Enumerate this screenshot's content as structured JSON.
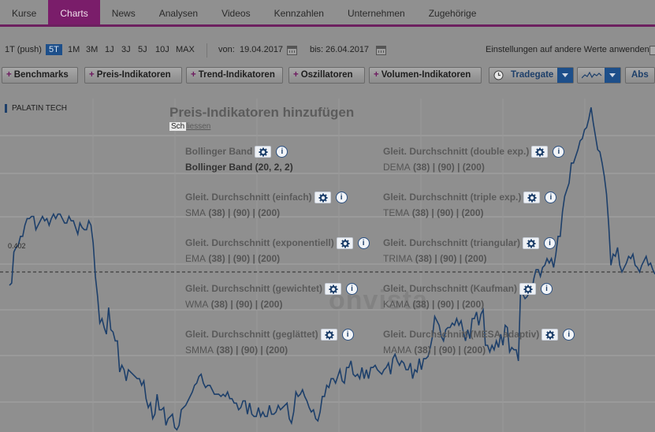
{
  "nav": {
    "tabs": [
      {
        "label": "Kurse"
      },
      {
        "label": "Charts",
        "active": true
      },
      {
        "label": "News"
      },
      {
        "label": "Analysen"
      },
      {
        "label": "Videos"
      },
      {
        "label": "Kennzahlen"
      },
      {
        "label": "Unternehmen"
      },
      {
        "label": "Zugehörige"
      }
    ]
  },
  "range": {
    "options": [
      "1T (push)",
      "5T",
      "1M",
      "3M",
      "1J",
      "3J",
      "5J",
      "10J",
      "MAX"
    ],
    "selected": "5T",
    "from_label": "von:",
    "from_value": "19.04.2017",
    "to_label": "bis:",
    "to_value": "26.04.2017",
    "apply_label": "Einstellungen auf andere Werte anwenden:"
  },
  "toolbar": {
    "benchmarks": "Benchmarks",
    "price": "Preis-Indikatoren",
    "trend": "Trend-Indikatoren",
    "osc": "Oszillatoren",
    "volume": "Volumen-Indikatoren",
    "exchange": "Tradegate",
    "scale": "Abs"
  },
  "chart": {
    "series_name": "PALATIN TECH",
    "ref_price": "0.402",
    "watermark": "onvista",
    "line_color": "#1d3f6a"
  },
  "chart_data": {
    "type": "line",
    "title": "PALATIN TECH",
    "series": [
      {
        "name": "PALATIN TECH",
        "values": [
          0.396,
          0.397,
          0.411,
          0.413,
          0.414,
          0.418,
          0.418,
          0.423,
          0.426,
          0.426,
          0.427,
          0.427,
          0.421,
          0.423,
          0.425,
          0.427,
          0.425,
          0.426,
          0.423,
          0.426,
          0.428,
          0.426,
          0.428,
          0.428,
          0.426,
          0.424,
          0.424,
          0.427,
          0.425,
          0.425,
          0.422,
          0.419,
          0.424,
          0.422,
          0.421,
          0.421,
          0.425,
          0.423,
          0.415,
          0.4,
          0.391,
          0.379,
          0.381,
          0.377,
          0.374,
          0.386,
          0.376,
          0.375,
          0.371,
          0.371,
          0.357,
          0.36,
          0.358,
          0.353,
          0.358,
          0.357,
          0.356,
          0.355,
          0.354,
          0.354,
          0.351,
          0.353,
          0.345,
          0.341,
          0.343,
          0.336,
          0.338,
          0.347,
          0.34,
          0.34,
          0.341,
          0.333,
          0.336,
          0.337,
          0.338,
          0.332,
          0.331,
          0.333,
          0.34,
          0.341,
          0.342,
          0.344,
          0.346,
          0.348,
          0.351,
          0.352,
          0.355,
          0.356,
          0.352,
          0.35,
          0.351,
          0.351,
          0.349,
          0.347,
          0.347,
          0.347,
          0.346,
          0.347,
          0.346,
          0.348,
          0.345,
          0.345,
          0.343,
          0.343,
          0.34,
          0.341,
          0.344,
          0.344,
          0.338,
          0.343,
          0.338,
          0.337,
          0.337,
          0.341,
          0.337,
          0.339,
          0.337,
          0.337,
          0.342,
          0.338,
          0.338,
          0.339,
          0.342,
          0.34,
          0.341,
          0.342,
          0.343,
          0.336,
          0.334,
          0.339,
          0.348,
          0.346,
          0.347,
          0.349,
          0.346,
          0.344,
          0.341,
          0.339,
          0.34,
          0.336,
          0.335,
          0.339,
          0.346,
          0.346,
          0.351,
          0.35,
          0.354,
          0.354,
          0.352,
          0.355,
          0.358,
          0.353,
          0.352,
          0.359,
          0.359,
          0.362,
          0.356,
          0.355,
          0.356,
          0.354,
          0.359,
          0.354,
          0.358,
          0.354,
          0.359,
          0.359,
          0.36,
          0.358,
          0.357,
          0.356,
          0.358,
          0.359,
          0.361,
          0.356,
          0.363,
          0.365,
          0.362,
          0.36,
          0.362,
          0.361,
          0.358,
          0.358,
          0.361,
          0.354,
          0.358,
          0.357,
          0.363,
          0.358,
          0.363,
          0.363,
          0.364,
          0.368,
          0.373,
          0.382,
          0.38,
          0.378,
          0.373,
          0.371,
          0.376,
          0.377,
          0.377,
          0.379,
          0.378,
          0.381,
          0.378,
          0.38,
          0.375,
          0.371,
          0.376,
          0.372,
          0.381,
          0.381,
          0.384,
          0.378,
          0.383,
          0.385,
          0.369,
          0.369,
          0.366,
          0.369,
          0.367,
          0.371,
          0.368,
          0.374,
          0.369,
          0.378,
          0.377,
          0.366,
          0.368,
          0.367,
          0.367,
          0.362,
          0.394,
          0.392,
          0.39,
          0.391,
          0.393,
          0.393,
          0.399,
          0.403,
          0.403,
          0.4,
          0.404,
          0.405,
          0.408,
          0.406,
          0.408,
          0.404,
          0.41,
          0.418,
          0.418,
          0.429,
          0.436,
          0.439,
          0.442,
          0.451,
          0.451,
          0.454,
          0.457,
          0.461,
          0.462,
          0.466,
          0.467,
          0.471,
          0.476,
          0.469,
          0.463,
          0.457,
          0.456,
          0.451,
          0.445,
          0.437,
          0.423,
          0.405,
          0.41,
          0.409,
          0.413,
          0.405,
          0.402,
          0.404,
          0.406,
          0.409,
          0.408,
          0.41,
          0.405,
          0.404,
          0.402,
          0.405,
          0.407,
          0.409,
          0.405,
          0.406,
          0.403,
          0.401
        ]
      }
    ],
    "reference_line": 0.402,
    "ylim": [
      0.33,
      0.48
    ],
    "xlabel": "",
    "ylabel": ""
  },
  "overlay": {
    "title": "Preis-Indikatoren hinzufügen",
    "close_box": "Sch",
    "close_rest": "liessen",
    "left": [
      {
        "name": "Bollinger Band",
        "params": [
          "Bollinger Band (20, 2, 2)"
        ],
        "dark": true
      },
      {
        "name": "Gleit. Durchschnitt (einfach)",
        "params": [
          "SMA",
          "(38)",
          "|",
          "(90)",
          "|",
          "(200)"
        ]
      },
      {
        "name": "Gleit. Durchschnitt (exponentiell)",
        "params": [
          "EMA",
          "(38)",
          "|",
          "(90)",
          "|",
          "(200)"
        ]
      },
      {
        "name": "Gleit. Durchschnitt (gewichtet)",
        "params": [
          "WMA",
          "(38)",
          "|",
          "(90)",
          "|",
          "(200)"
        ]
      },
      {
        "name": "Gleit. Durchschnitt (geglättet)",
        "params": [
          "SMMA",
          "(38)",
          "|",
          "(90)",
          "|",
          "(200)"
        ]
      }
    ],
    "right": [
      {
        "name": "Gleit. Durchschnitt (double exp.)",
        "params": [
          "DEMA",
          "(38)",
          "|",
          "(90)",
          "|",
          "(200)"
        ]
      },
      {
        "name": "Gleit. Durchschnitt (triple exp.)",
        "params": [
          "TEMA",
          "(38)",
          "|",
          "(90)",
          "|",
          "(200)"
        ]
      },
      {
        "name": "Gleit. Durchschnitt (triangular)",
        "params": [
          "TRIMA",
          "(38)",
          "|",
          "(90)",
          "|",
          "(200)"
        ]
      },
      {
        "name": "Gleit. Durchschnitt (Kaufman)",
        "params": [
          "KAMA",
          "(38)",
          "|",
          "(90)",
          "|",
          "(200)"
        ]
      },
      {
        "name": "Gleit. Durchschnitt (MESA adaptiv)",
        "params": [
          "MAMA",
          "(38)",
          "|",
          "(90)",
          "|",
          "(200)"
        ]
      }
    ],
    "info_glyph": "i"
  }
}
